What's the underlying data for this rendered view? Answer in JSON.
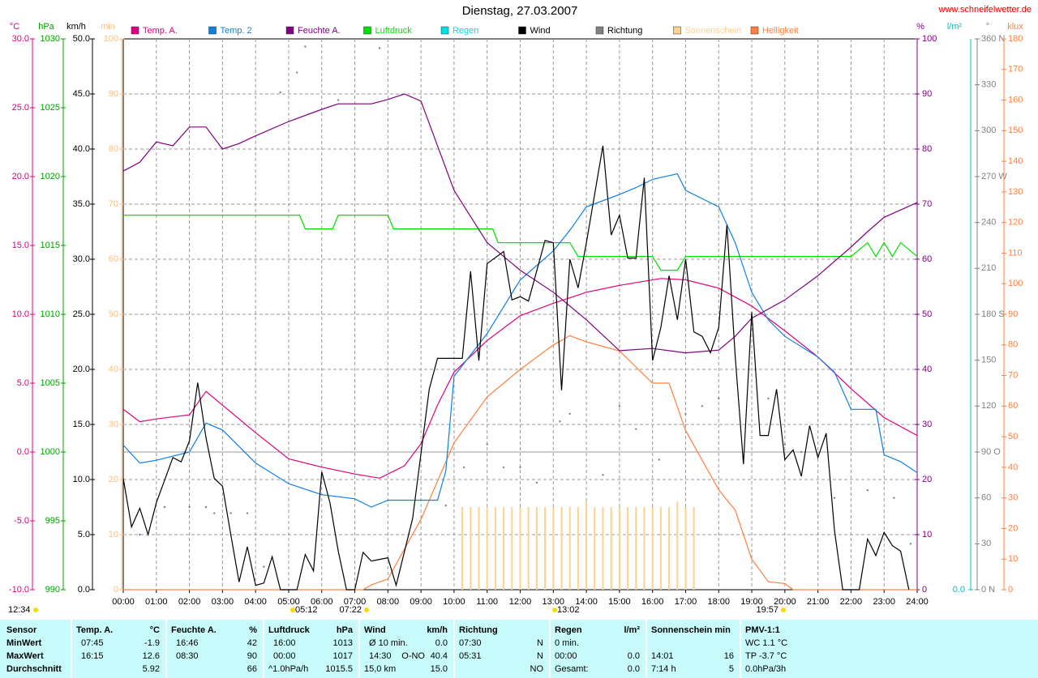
{
  "chart_data": {
    "type": "line",
    "title": "Dienstag, 27.03.2007",
    "source": "www.schneifelwetter.de",
    "xlim": [
      0,
      24
    ],
    "xticks": [
      {
        "value": 0,
        "label": "00:00"
      },
      {
        "value": 1,
        "label": "01:00"
      },
      {
        "value": 2,
        "label": "02:00"
      },
      {
        "value": 3,
        "label": "03:00"
      },
      {
        "value": 4,
        "label": "04:00"
      },
      {
        "value": 5,
        "label": "05:00"
      },
      {
        "value": 6,
        "label": "06:00"
      },
      {
        "value": 7,
        "label": "07:00"
      },
      {
        "value": 8,
        "label": "08:00"
      },
      {
        "value": 9,
        "label": "09:00"
      },
      {
        "value": 10,
        "label": "10:00"
      },
      {
        "value": 11,
        "label": "11:00"
      },
      {
        "value": 12,
        "label": "12:00"
      },
      {
        "value": 13,
        "label": "13:00"
      },
      {
        "value": 14,
        "label": "14:00"
      },
      {
        "value": 15,
        "label": "15:00"
      },
      {
        "value": 16,
        "label": "16:00"
      },
      {
        "value": 17,
        "label": "17:00"
      },
      {
        "value": 18,
        "label": "18:00"
      },
      {
        "value": 19,
        "label": "19:00"
      },
      {
        "value": 20,
        "label": "20:00"
      },
      {
        "value": 21,
        "label": "21:00"
      },
      {
        "value": 22,
        "label": "22:00"
      },
      {
        "value": 23,
        "label": "23:00"
      },
      {
        "value": 24,
        "label": "24:00"
      }
    ],
    "grid": true,
    "axes": {
      "y": {
        "label": "°C",
        "color": "#e0007f",
        "lim": [
          -10,
          30
        ],
        "ticks": [
          {
            "value": -10,
            "label": "-10.0"
          },
          {
            "value": -5,
            "label": "-5.0"
          },
          {
            "value": 0,
            "label": "0.0"
          },
          {
            "value": 5,
            "label": "5.0"
          },
          {
            "value": 10,
            "label": "10.0"
          },
          {
            "value": 15,
            "label": "15.0"
          },
          {
            "value": 20,
            "label": "20.0"
          },
          {
            "value": 25,
            "label": "25.0"
          },
          {
            "value": 30,
            "label": "30.0"
          }
        ]
      },
      "y2": {
        "label": "hPa",
        "color": "#00a000",
        "lim": [
          990,
          1030
        ],
        "ticks": [
          990,
          995,
          1000,
          1005,
          1010,
          1015,
          1020,
          1025,
          1030
        ]
      },
      "y3": {
        "label": "km/h",
        "color": "#000000",
        "lim": [
          0,
          50
        ],
        "ticks": [
          {
            "value": 0,
            "label": "0.0"
          },
          {
            "value": 5,
            "label": "5.0"
          },
          {
            "value": 10,
            "label": "10.0"
          },
          {
            "value": 15,
            "label": "15.0"
          },
          {
            "value": 20,
            "label": "20.0"
          },
          {
            "value": 25,
            "label": "25.0"
          },
          {
            "value": 30,
            "label": "30.0"
          },
          {
            "value": 35,
            "label": "35.0"
          },
          {
            "value": 40,
            "label": "40.0"
          },
          {
            "value": 45,
            "label": "45.0"
          },
          {
            "value": 50,
            "label": "50.0"
          }
        ]
      },
      "y4": {
        "label": "min",
        "color": "#ffc080",
        "lim": [
          0,
          100
        ],
        "ticks": [
          0,
          10,
          20,
          30,
          40,
          50,
          60,
          70,
          80,
          90,
          100
        ]
      },
      "y5": {
        "label": "%",
        "color": "#800080",
        "lim": [
          0,
          100
        ],
        "ticks": [
          0,
          10,
          20,
          30,
          40,
          50,
          60,
          70,
          80,
          90,
          100
        ]
      },
      "y6": {
        "label": "l/m²",
        "color": "#00c0c0",
        "lim": [
          0,
          10
        ],
        "ticks": [
          {
            "value": 0,
            "label": "0.0"
          }
        ]
      },
      "y7": {
        "label": "°",
        "color": "#808080",
        "lim": [
          0,
          360
        ],
        "ticks": [
          {
            "value": 0,
            "label": "0 N"
          },
          30,
          60,
          {
            "value": 90,
            "label": "90 O"
          },
          120,
          150,
          {
            "value": 180,
            "label": "180 S"
          },
          210,
          240,
          {
            "value": 270,
            "label": "270 W"
          },
          300,
          330,
          {
            "value": 360,
            "label": "360 N"
          }
        ]
      },
      "y8": {
        "label": "klux",
        "color": "#ff8040",
        "lim": [
          0,
          180
        ],
        "ticks": [
          0,
          10,
          20,
          30,
          40,
          50,
          60,
          70,
          80,
          90,
          100,
          110,
          120,
          130,
          140,
          150,
          160,
          170,
          180
        ]
      }
    },
    "series": [
      {
        "name": "Temp. A.",
        "color": "#e0007f",
        "axis": "y",
        "style": "line",
        "x": [
          0,
          0.5,
          1,
          2,
          2.5,
          3,
          4,
          5,
          6,
          7,
          7.75,
          8.5,
          9,
          9.5,
          10,
          11,
          12,
          13,
          14,
          15,
          16.25,
          17,
          18,
          19,
          20,
          21,
          22,
          23,
          24
        ],
        "values": [
          3.1,
          2.2,
          2.4,
          2.7,
          4.4,
          3.4,
          1.4,
          -0.5,
          -1.1,
          -1.6,
          -1.9,
          -1.0,
          0.6,
          3.4,
          5.8,
          8.1,
          9.9,
          10.8,
          11.6,
          12.1,
          12.6,
          12.5,
          11.9,
          10.6,
          8.8,
          6.9,
          4.6,
          2.5,
          1.2
        ]
      },
      {
        "name": "Temp. 2",
        "color": "#1080e0",
        "axis": "y",
        "style": "line",
        "x": [
          0,
          0.5,
          1,
          2,
          2.5,
          3,
          4,
          5,
          6,
          7,
          7.5,
          8,
          9.5,
          9.75,
          10,
          11,
          12,
          13,
          13.5,
          14,
          15,
          15.5,
          16,
          16.75,
          17,
          18,
          18.5,
          19,
          19.5,
          20,
          21,
          21.5,
          22,
          22.75,
          23,
          23.5,
          24
        ],
        "values": [
          0.5,
          -0.8,
          -0.6,
          0,
          2.1,
          1.6,
          -0.8,
          -2.3,
          -3.1,
          -3.4,
          -4.0,
          -3.5,
          -3.5,
          -1.4,
          5.5,
          8.6,
          12.5,
          14.6,
          16.1,
          17.8,
          18.7,
          19.2,
          19.8,
          20.2,
          19.0,
          17.8,
          15.2,
          11.6,
          9.6,
          8.4,
          6.9,
          5.8,
          3.1,
          3.1,
          -0.2,
          -0.7,
          -1.5
        ]
      },
      {
        "name": "Feuchte A.",
        "color": "#800080",
        "axis": "y5",
        "style": "line",
        "x": [
          0,
          0.5,
          1,
          1.5,
          2,
          2.5,
          3,
          3.5,
          4,
          5,
          6,
          6.5,
          7.5,
          8,
          8.5,
          9,
          9.5,
          10,
          11,
          12,
          13,
          14,
          15,
          16,
          17,
          18,
          18.5,
          19,
          20,
          21,
          22,
          22.5,
          23,
          24
        ],
        "values": [
          76,
          77.6,
          81.3,
          80.6,
          84,
          84,
          80,
          81,
          82.4,
          85,
          87.2,
          88.2,
          88.2,
          89,
          90,
          88.7,
          80.6,
          72.5,
          63,
          58,
          54,
          49,
          43.4,
          43.8,
          43,
          43.5,
          46,
          49.3,
          52.6,
          57,
          62.2,
          65,
          67.6,
          70.3
        ]
      },
      {
        "name": "Luftdruck",
        "color": "#00e000",
        "axis": "y2",
        "style": "line",
        "x": [
          0,
          5.33,
          5.5,
          6.33,
          6.5,
          8,
          8.17,
          11.17,
          11.33,
          13.5,
          13.75,
          16,
          16.25,
          16.75,
          17,
          22,
          22.5,
          22.75,
          23,
          23.25,
          23.5,
          24
        ],
        "values": [
          1017.2,
          1017.2,
          1016.2,
          1016.2,
          1017.2,
          1017.2,
          1016.2,
          1016.2,
          1015.2,
          1015.2,
          1014.2,
          1014.2,
          1013.2,
          1013.2,
          1014.2,
          1014.2,
          1015.2,
          1014.2,
          1015.2,
          1014.2,
          1015.2,
          1014.2
        ]
      },
      {
        "name": "Regen",
        "color": "#00e0e0",
        "axis": "y6",
        "style": "line"
      },
      {
        "name": "Wind",
        "color": "#000000",
        "axis": "y3",
        "style": "line",
        "x": [
          0,
          0.25,
          0.5,
          0.75,
          1,
          1.5,
          1.75,
          2,
          2.25,
          2.5,
          2.75,
          3,
          3.25,
          3.5,
          3.75,
          4,
          4.25,
          4.5,
          4.75,
          5.25,
          5.5,
          5.75,
          6,
          6.25,
          6.5,
          6.75,
          7,
          7.25,
          7.5,
          8,
          8.25,
          8.75,
          9.25,
          9.5,
          10.25,
          10.5,
          10.75,
          11,
          11.5,
          11.75,
          12,
          12.25,
          12.75,
          13,
          13.25,
          13.5,
          13.75,
          14,
          14.5,
          14.75,
          15,
          15.25,
          15.5,
          15.75,
          16,
          16.25,
          16.5,
          16.75,
          17,
          17.25,
          17.5,
          17.75,
          18,
          18.25,
          18.5,
          18.75,
          19,
          19.25,
          19.5,
          19.75,
          20,
          20.25,
          20.5,
          20.75,
          21,
          21.25,
          21.5,
          21.75,
          22.25,
          22.5,
          22.75,
          23,
          23.25,
          23.5,
          23.75
        ],
        "values": [
          10.1,
          5.7,
          7.4,
          5,
          7.9,
          12,
          11.6,
          13.5,
          18.8,
          13.8,
          10.1,
          9.4,
          5,
          0.7,
          3.9,
          0.4,
          0.6,
          3,
          0,
          0,
          3.2,
          1.7,
          10.7,
          7.9,
          3.5,
          0,
          0,
          3.4,
          2.6,
          2.9,
          0.4,
          6.5,
          18.2,
          21,
          21,
          28.9,
          20.8,
          29.6,
          30.7,
          26.3,
          26.6,
          26.2,
          31.7,
          31.5,
          18.1,
          30,
          27.4,
          31.5,
          40.3,
          32.2,
          34,
          30.1,
          30.1,
          37.4,
          20.8,
          23.8,
          28.5,
          24.5,
          30,
          23.4,
          23,
          21.5,
          23.8,
          33.1,
          21.2,
          11.4,
          25.2,
          14,
          14,
          18.2,
          11.8,
          12.7,
          10.3,
          14.9,
          12,
          14.2,
          5.4,
          0,
          0,
          4.6,
          3.1,
          5.2,
          4,
          3.5,
          0
        ]
      },
      {
        "name": "Richtung",
        "color": "#808080",
        "axis": "y7",
        "style": "dots",
        "x": [
          0.5,
          1.25,
          2,
          2.5,
          2.75,
          3.25,
          3.75,
          4.25,
          4.75,
          5.25,
          5.5,
          6.5,
          7.75,
          9.75,
          10.3,
          11,
          11.5,
          12,
          12.5,
          13.2,
          13.5,
          14.5,
          15,
          15.5,
          16.2,
          17,
          17.5,
          18,
          19.5,
          20,
          20.5,
          21.5,
          22.5,
          23.3,
          23.8
        ],
        "values": [
          36,
          54,
          54,
          54,
          50,
          50,
          50,
          15,
          325,
          338,
          355,
          320,
          354,
          55,
          80,
          95,
          80,
          80,
          70,
          110,
          115,
          75,
          120,
          105,
          85,
          115,
          120,
          125,
          125,
          95,
          90,
          60,
          65,
          60,
          30
        ]
      },
      {
        "name": "Sonnenschein",
        "color": "#ffd090",
        "axis": "y4",
        "style": "bars",
        "x": [
          10.25,
          10.5,
          10.75,
          11,
          11.25,
          11.5,
          11.75,
          12,
          12.25,
          12.5,
          12.75,
          13,
          13.25,
          13.5,
          13.75,
          14,
          14.25,
          14.5,
          14.75,
          15,
          15.25,
          15.5,
          15.75,
          16,
          16.25,
          16.5,
          16.75,
          17,
          17.25
        ],
        "values": [
          15,
          15,
          15,
          15,
          15,
          15,
          15,
          15,
          15,
          15,
          15,
          15,
          15,
          15,
          15,
          16,
          15,
          15,
          15,
          15,
          15,
          15,
          15,
          15,
          15,
          15,
          16,
          15,
          15
        ]
      },
      {
        "name": "Helligkeit",
        "color": "#ff8040",
        "axis": "y8",
        "style": "line",
        "x": [
          0,
          7.25,
          7.5,
          8,
          9,
          10,
          11,
          12,
          13,
          13.5,
          14,
          15,
          16,
          16.5,
          17,
          18,
          18.5,
          19,
          19.5,
          20,
          20.25,
          24
        ],
        "values": [
          0,
          0,
          1.6,
          3.5,
          23,
          48,
          63,
          72,
          80,
          83,
          81,
          78,
          67.5,
          67.5,
          52,
          32.6,
          26,
          10,
          2.6,
          2,
          0,
          0
        ]
      }
    ],
    "annotations": [
      "12:34",
      "05:12",
      "07:22",
      "13:02",
      "19:57"
    ]
  },
  "table": {
    "label_header": "Sensor",
    "row_labels": [
      "MinWert",
      "MaxWert",
      "Durchschnitt"
    ],
    "sections": [
      {
        "header": [
          "Temp. A.",
          "°C"
        ],
        "rows": [
          {
            "left": "07:45",
            "right": "-1.9"
          },
          {
            "left": "16:15",
            "right": "12.6"
          },
          {
            "right": "5.92"
          }
        ]
      },
      {
        "header": [
          "Feuchte A.",
          "%"
        ],
        "rows": [
          {
            "left": "16:46",
            "right": "42"
          },
          {
            "left": "08:30",
            "right": "90"
          },
          {
            "right": "66"
          }
        ]
      },
      {
        "header": [
          "Luftdruck",
          "hPa"
        ],
        "rows": [
          {
            "left": "16:00",
            "right": "1013"
          },
          {
            "left": "00:00",
            "right": "1017"
          },
          {
            "left": "^1.0hPa/h",
            "right": "1015.5"
          }
        ]
      },
      {
        "header": [
          "Wind",
          "km/h"
        ],
        "rows": [
          {
            "left": "Ø 10 min.",
            "right": "0.0"
          },
          {
            "left": "14:30",
            "mid": "O-NO",
            "right": "40.4"
          },
          {
            "left": "15,0 km",
            "right": "15.0"
          }
        ]
      },
      {
        "header": [
          "Richtung"
        ],
        "rows": [
          {
            "left": "07:30",
            "right": "N"
          },
          {
            "left": "05:31",
            "right": "N"
          },
          {
            "right": "NO"
          }
        ]
      },
      {
        "header": [
          "Regen",
          "l/m²"
        ],
        "rows": [
          {
            "left": "0 min."
          },
          {
            "left": "00:00",
            "right": "0.0"
          },
          {
            "left": "Gesamt:",
            "right": "0.0"
          }
        ]
      },
      {
        "header": [
          "Sonnenschein min"
        ],
        "rows": [
          {},
          {
            "left": "14:01",
            "right": "16"
          },
          {
            "left": "7:14 h",
            "right": "5"
          }
        ]
      },
      {
        "header": [
          "PMV-1:1"
        ],
        "rows": [
          {
            "left": "WC 1.1 °C"
          },
          {
            "left": "TP -3.7 °C"
          },
          {
            "left": "0.0hPa/3h"
          }
        ]
      }
    ]
  }
}
